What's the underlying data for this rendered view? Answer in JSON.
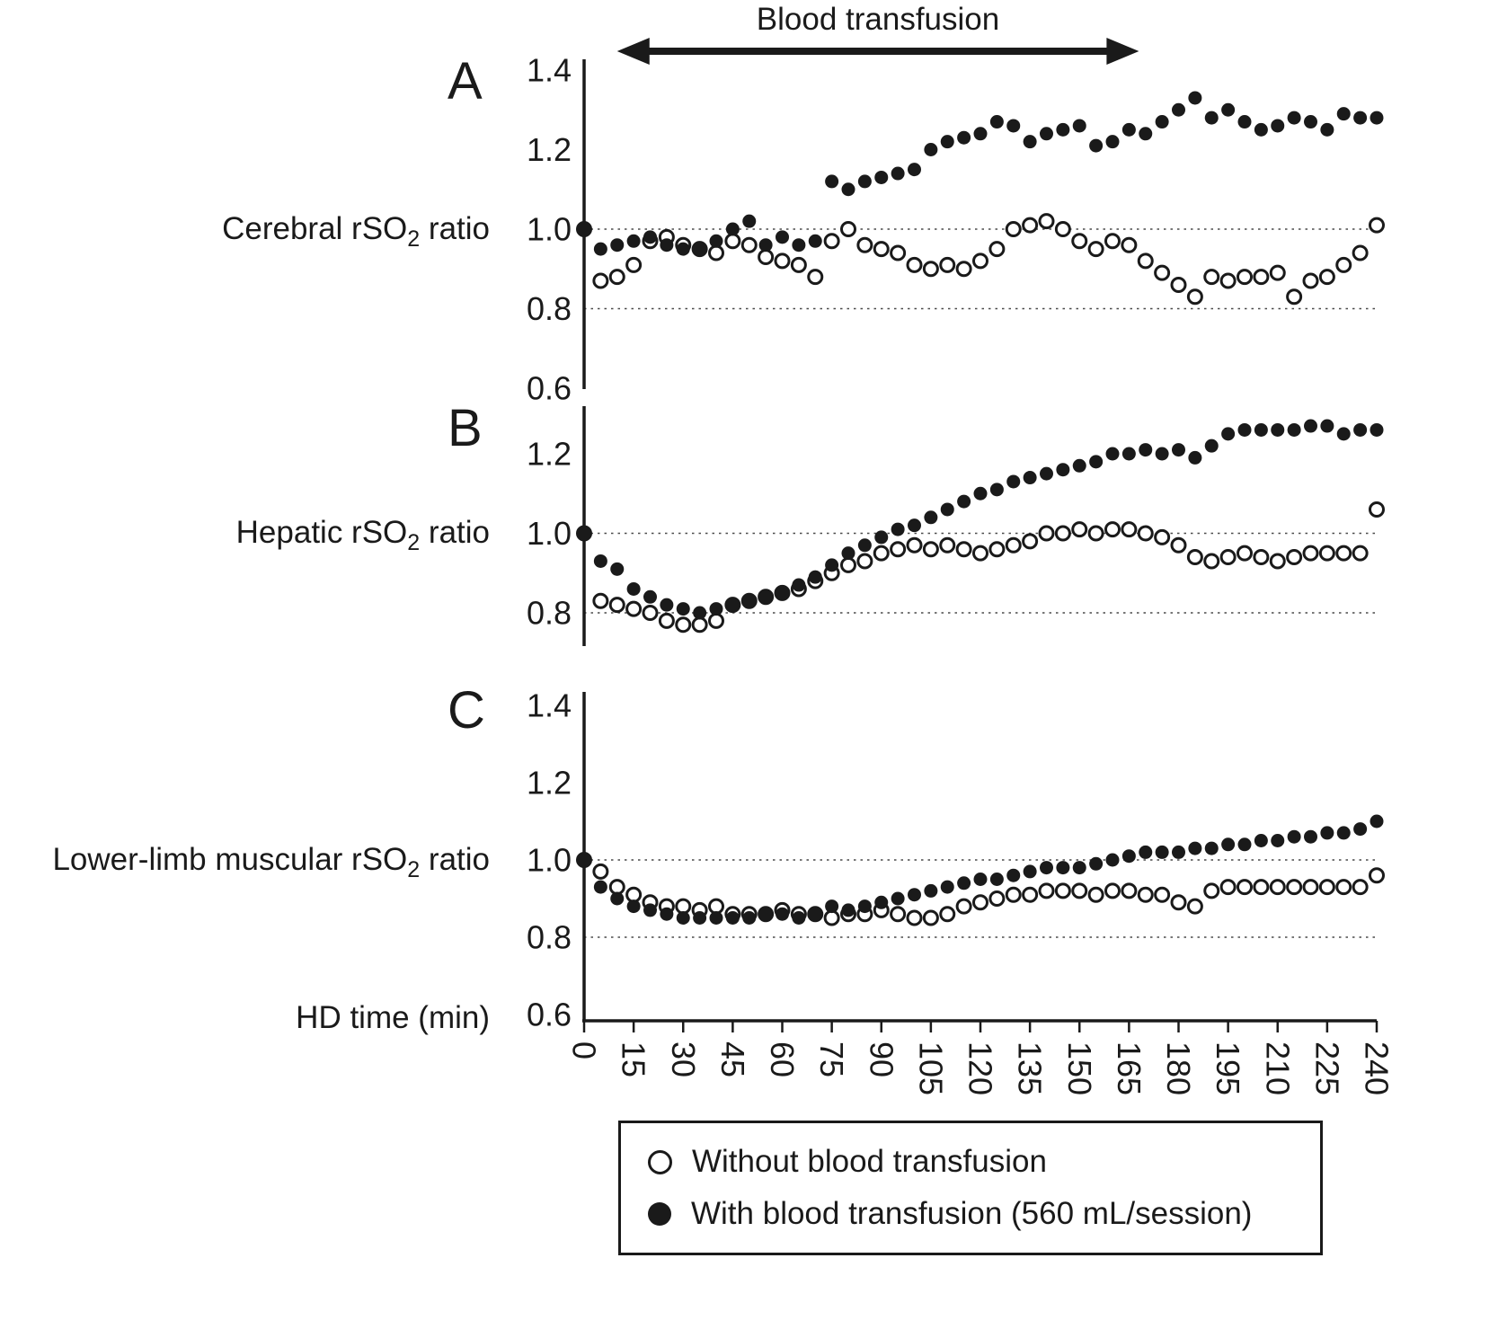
{
  "figure": {
    "ink_color": "#1a1a1a",
    "background_color": "#ffffff"
  },
  "legend": {
    "items": [
      {
        "marker": "open-circle",
        "label": "Without blood transfusion"
      },
      {
        "marker": "filled-circle",
        "label": "With blood transfusion (560 mL/session)"
      }
    ]
  },
  "chart_data": {
    "type": "scatter",
    "xlabel": "HD time (min)",
    "x_range": [
      0,
      240
    ],
    "grid": "dotted horizontal reference lines at 1.0 and 0.8",
    "legend_position": "bottom boxed",
    "annotation": {
      "label": "Blood transfusion",
      "x_start": 10,
      "x_end": 168
    },
    "x": [
      0,
      5,
      10,
      15,
      20,
      25,
      30,
      35,
      40,
      45,
      50,
      55,
      60,
      65,
      70,
      75,
      80,
      85,
      90,
      95,
      100,
      105,
      110,
      115,
      120,
      125,
      130,
      135,
      140,
      145,
      150,
      155,
      160,
      165,
      170,
      175,
      180,
      185,
      190,
      195,
      200,
      205,
      210,
      215,
      220,
      225,
      230,
      235,
      240
    ],
    "x_ticks": [
      0,
      15,
      30,
      45,
      60,
      75,
      90,
      105,
      120,
      135,
      150,
      165,
      180,
      195,
      210,
      225,
      240
    ],
    "x_tick_labels": [
      "0",
      "15",
      "30",
      "45",
      "60",
      "75",
      "90",
      "105",
      "120",
      "135",
      "150",
      "165",
      "180",
      "195",
      "210",
      "225",
      "240"
    ],
    "panels": [
      {
        "letter": "A",
        "ylabel": {
          "pre": "Cerebral rSO",
          "sub": "2",
          "post": " ratio"
        },
        "y_ticks": [
          1.4,
          1.2,
          1.0,
          0.8,
          0.6
        ],
        "y_tick_labels": [
          "1.4",
          "1.2",
          "1.0",
          "0.8",
          "0.6"
        ],
        "ylim": [
          0.6,
          1.44
        ],
        "gridlines": [
          1.0,
          0.8
        ],
        "series": [
          {
            "name": "Without blood transfusion",
            "marker": "open",
            "values": [
              1.0,
              0.87,
              0.88,
              0.91,
              0.97,
              0.98,
              0.96,
              0.95,
              0.94,
              0.97,
              0.96,
              0.93,
              0.92,
              0.91,
              0.88,
              0.97,
              1.0,
              0.96,
              0.95,
              0.94,
              0.91,
              0.9,
              0.91,
              0.9,
              0.92,
              0.95,
              1.0,
              1.01,
              1.02,
              1.0,
              0.97,
              0.95,
              0.97,
              0.96,
              0.92,
              0.89,
              0.86,
              0.83,
              0.88,
              0.87,
              0.88,
              0.88,
              0.89,
              0.83,
              0.87,
              0.88,
              0.91,
              0.94,
              1.01
            ]
          },
          {
            "name": "With blood transfusion (560 mL/session)",
            "marker": "filled",
            "values": [
              1.0,
              0.95,
              0.96,
              0.97,
              0.98,
              0.96,
              0.95,
              0.95,
              0.97,
              1.0,
              1.02,
              0.96,
              0.98,
              0.96,
              0.97,
              1.12,
              1.1,
              1.12,
              1.13,
              1.14,
              1.15,
              1.2,
              1.22,
              1.23,
              1.24,
              1.27,
              1.26,
              1.22,
              1.24,
              1.25,
              1.26,
              1.21,
              1.22,
              1.25,
              1.24,
              1.27,
              1.3,
              1.33,
              1.28,
              1.3,
              1.27,
              1.25,
              1.26,
              1.28,
              1.27,
              1.25,
              1.29,
              1.28,
              1.28
            ]
          }
        ]
      },
      {
        "letter": "B",
        "ylabel": {
          "pre": "Hepatic rSO",
          "sub": "2",
          "post": " ratio"
        },
        "y_ticks": [
          1.2,
          1.0,
          0.8
        ],
        "y_tick_labels": [
          "1.2",
          "1.0",
          "0.8"
        ],
        "ylim": [
          0.72,
          1.32
        ],
        "gridlines": [
          1.0,
          0.8
        ],
        "series": [
          {
            "name": "Without blood transfusion",
            "marker": "open",
            "values": [
              1.0,
              0.83,
              0.82,
              0.81,
              0.8,
              0.78,
              0.77,
              0.77,
              0.78,
              0.82,
              0.83,
              0.84,
              0.85,
              0.86,
              0.88,
              0.9,
              0.92,
              0.93,
              0.95,
              0.96,
              0.97,
              0.96,
              0.97,
              0.96,
              0.95,
              0.96,
              0.97,
              0.98,
              1.0,
              1.0,
              1.01,
              1.0,
              1.01,
              1.01,
              1.0,
              0.99,
              0.97,
              0.94,
              0.93,
              0.94,
              0.95,
              0.94,
              0.93,
              0.94,
              0.95,
              0.95,
              0.95,
              0.95,
              1.06
            ]
          },
          {
            "name": "With blood transfusion (560 mL/session)",
            "marker": "filled",
            "values": [
              1.0,
              0.93,
              0.91,
              0.86,
              0.84,
              0.82,
              0.81,
              0.8,
              0.81,
              0.82,
              0.83,
              0.84,
              0.85,
              0.87,
              0.89,
              0.92,
              0.95,
              0.97,
              0.99,
              1.01,
              1.02,
              1.04,
              1.06,
              1.08,
              1.1,
              1.11,
              1.13,
              1.14,
              1.15,
              1.16,
              1.17,
              1.18,
              1.2,
              1.2,
              1.21,
              1.2,
              1.21,
              1.19,
              1.22,
              1.25,
              1.26,
              1.26,
              1.26,
              1.26,
              1.27,
              1.27,
              1.25,
              1.26,
              1.26
            ]
          }
        ]
      },
      {
        "letter": "C",
        "ylabel": {
          "pre": "Lower-limb muscular rSO",
          "sub": "2",
          "post": " ratio"
        },
        "y_ticks": [
          1.4,
          1.2,
          1.0,
          0.8,
          0.6
        ],
        "y_tick_labels": [
          "1.4",
          "1.2",
          "1.0",
          "0.8",
          "0.6"
        ],
        "ylim": [
          0.6,
          1.44
        ],
        "gridlines": [
          1.0,
          0.8
        ],
        "series": [
          {
            "name": "Without blood transfusion",
            "marker": "open",
            "values": [
              1.0,
              0.97,
              0.93,
              0.91,
              0.89,
              0.88,
              0.88,
              0.87,
              0.88,
              0.86,
              0.86,
              0.86,
              0.87,
              0.86,
              0.86,
              0.85,
              0.86,
              0.86,
              0.87,
              0.86,
              0.85,
              0.85,
              0.86,
              0.88,
              0.89,
              0.9,
              0.91,
              0.91,
              0.92,
              0.92,
              0.92,
              0.91,
              0.92,
              0.92,
              0.91,
              0.91,
              0.89,
              0.88,
              0.92,
              0.93,
              0.93,
              0.93,
              0.93,
              0.93,
              0.93,
              0.93,
              0.93,
              0.93,
              0.96
            ]
          },
          {
            "name": "With blood transfusion (560 mL/session)",
            "marker": "filled",
            "values": [
              1.0,
              0.93,
              0.9,
              0.88,
              0.87,
              0.86,
              0.85,
              0.85,
              0.85,
              0.85,
              0.85,
              0.86,
              0.86,
              0.85,
              0.86,
              0.88,
              0.87,
              0.88,
              0.89,
              0.9,
              0.91,
              0.92,
              0.93,
              0.94,
              0.95,
              0.95,
              0.96,
              0.97,
              0.98,
              0.98,
              0.98,
              0.99,
              1.0,
              1.01,
              1.02,
              1.02,
              1.02,
              1.03,
              1.03,
              1.04,
              1.04,
              1.05,
              1.05,
              1.06,
              1.06,
              1.07,
              1.07,
              1.08,
              1.1
            ]
          }
        ]
      }
    ]
  }
}
